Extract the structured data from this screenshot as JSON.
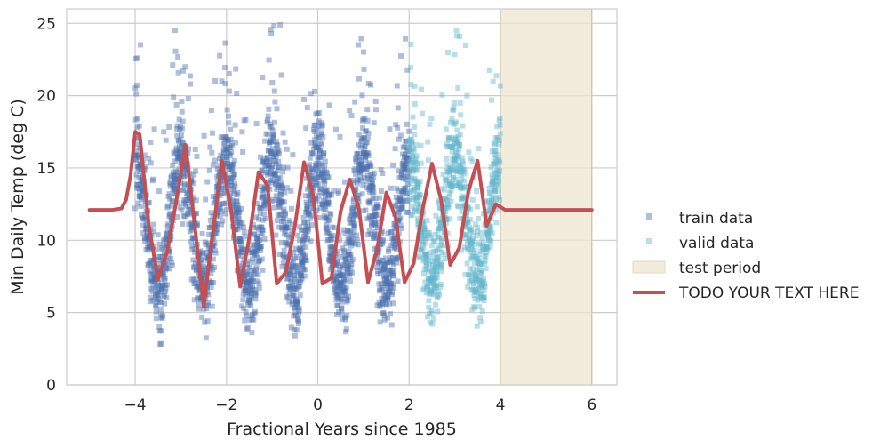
{
  "chart_data": {
    "type": "scatter",
    "xlabel": "Fractional Years since 1985",
    "ylabel": "Min Daily Temp (deg C)",
    "xlim": [
      -5.5,
      6.55
    ],
    "ylim": [
      0,
      26
    ],
    "xticks": [
      -4,
      -2,
      0,
      2,
      4,
      6
    ],
    "xtick_labels": [
      "−4",
      "−2",
      "0",
      "2",
      "4",
      "6"
    ],
    "yticks": [
      0,
      5,
      10,
      15,
      20,
      25
    ],
    "ytick_labels": [
      "0",
      "5",
      "10",
      "15",
      "20",
      "25"
    ],
    "grid": true,
    "legend_position": "center-right outside",
    "series": [
      {
        "name": "train data",
        "kind": "scatter",
        "marker": "square",
        "color": "#4c72b0",
        "x_range": [
          -4.0,
          2.0
        ],
        "seasonal_mean": 11.2,
        "seasonal_amplitude": 4.3,
        "spread": 3.0,
        "points_per_year": 365
      },
      {
        "name": "valid data",
        "kind": "scatter",
        "marker": "square",
        "color": "#64b5cd",
        "x_range": [
          2.0,
          4.0
        ],
        "seasonal_mean": 11.5,
        "seasonal_amplitude": 4.0,
        "spread": 3.0,
        "points_per_year": 365
      },
      {
        "name": "test period",
        "kind": "region",
        "color": "#ede6d1",
        "x_range": [
          4,
          6
        ]
      },
      {
        "name": "TODO YOUR TEXT HERE",
        "kind": "line",
        "color": "#c44e52",
        "x": [
          -5.0,
          -4.5,
          -4.3,
          -4.2,
          -4.1,
          -4.0,
          -3.9,
          -3.7,
          -3.5,
          -3.3,
          -3.1,
          -2.9,
          -2.7,
          -2.5,
          -2.3,
          -2.1,
          -1.9,
          -1.7,
          -1.5,
          -1.3,
          -1.1,
          -0.9,
          -0.7,
          -0.5,
          -0.3,
          -0.1,
          0.1,
          0.3,
          0.5,
          0.7,
          0.9,
          1.1,
          1.3,
          1.5,
          1.7,
          1.9,
          2.1,
          2.3,
          2.5,
          2.7,
          2.9,
          3.1,
          3.3,
          3.5,
          3.7,
          3.9,
          4.1,
          4.3,
          4.5,
          6.0
        ],
        "y": [
          12.1,
          12.1,
          12.2,
          12.8,
          14.5,
          17.5,
          17.3,
          11.0,
          7.3,
          9.2,
          12.7,
          16.6,
          11.2,
          5.4,
          10.5,
          15.5,
          12.1,
          6.8,
          10.2,
          14.7,
          13.8,
          7.0,
          7.8,
          11.0,
          15.4,
          13.1,
          7.0,
          7.4,
          12.0,
          14.2,
          12.2,
          7.1,
          9.4,
          13.3,
          11.6,
          7.1,
          8.4,
          12.2,
          15.3,
          12.8,
          8.3,
          9.5,
          13.4,
          15.5,
          11.0,
          12.5,
          12.1,
          12.1,
          12.1,
          12.1
        ]
      }
    ]
  }
}
